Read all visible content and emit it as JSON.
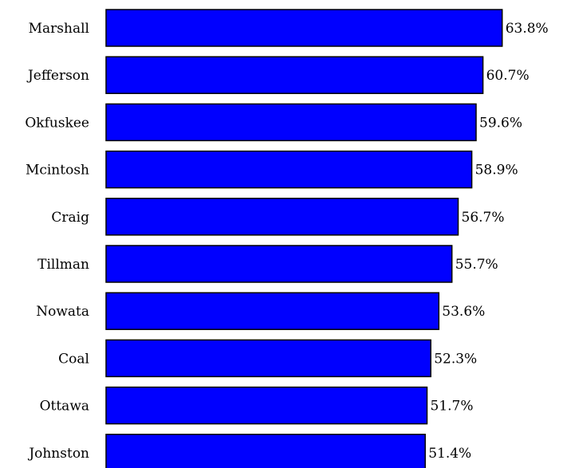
{
  "chart_data": {
    "type": "bar",
    "orientation": "horizontal",
    "categories": [
      "Marshall",
      "Jefferson",
      "Okfuskee",
      "Mcintosh",
      "Craig",
      "Tillman",
      "Nowata",
      "Coal",
      "Ottawa",
      "Johnston"
    ],
    "values": [
      63.8,
      60.7,
      59.6,
      58.9,
      56.7,
      55.7,
      53.6,
      52.3,
      51.7,
      51.4
    ],
    "value_labels": [
      "63.8%",
      "60.7%",
      "59.6%",
      "58.9%",
      "56.7%",
      "55.7%",
      "53.6%",
      "52.3%",
      "51.7%",
      "51.4%"
    ],
    "title": "",
    "xlabel": "",
    "ylabel": "",
    "grid": false,
    "legend": "none",
    "colors": {
      "bar_fill": "#0000ff",
      "bar_stroke": "#000000",
      "background": "#ffffff"
    }
  }
}
